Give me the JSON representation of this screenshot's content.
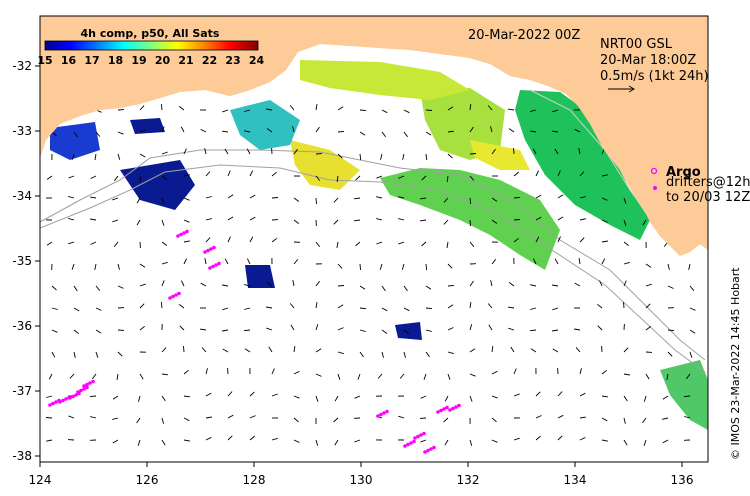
{
  "title": "20-Mar-2022 00Z",
  "colorbar": {
    "title": "4h comp, p50, All Sats",
    "labels": [
      "15",
      "16",
      "17",
      "18",
      "19",
      "20",
      "21",
      "22",
      "23",
      "24"
    ]
  },
  "currents": {
    "line1": "NRT00 GSL",
    "line2": "20-Mar 18:00Z",
    "line3": "0.5m/s (1kt 24h)"
  },
  "argo": {
    "title": "Argo",
    "line1": "drifters@12h",
    "line2": "to 20/03 12Z"
  },
  "credit": "© IMOS 23-Mar-2022 14:45 Hobart",
  "axes": {
    "x_ticks": [
      "124",
      "126",
      "128",
      "130",
      "132",
      "134",
      "136"
    ],
    "y_ticks": [
      "-32",
      "-33",
      "-34",
      "-35",
      "-36",
      "-37",
      "-38"
    ]
  },
  "colors": {
    "land": "#fdcb97",
    "argo": "#ff00ff",
    "isobath": "#a0a0a0"
  }
}
